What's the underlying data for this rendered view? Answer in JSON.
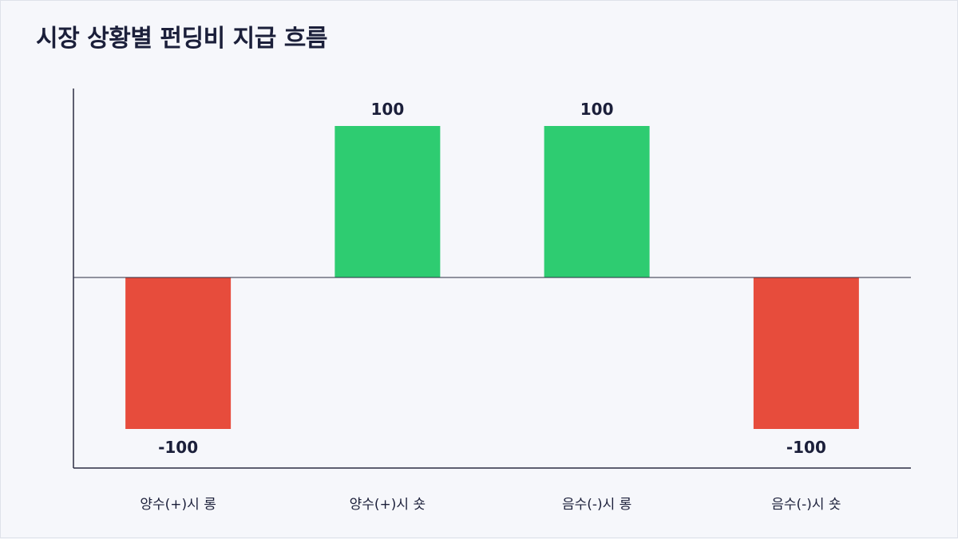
{
  "title": "시장 상황별 펀딩비 지급 흐름",
  "chart_data": {
    "type": "bar",
    "categories": [
      "양수(+)시 롱",
      "양수(+)시 숏",
      "음수(-)시 롱",
      "음수(-)시 숏"
    ],
    "values": [
      -100,
      100,
      100,
      -100
    ],
    "value_labels": [
      "-100",
      "100",
      "100",
      "-100"
    ],
    "title": "시장 상황별 펀딩비 지급 흐름",
    "xlabel": "",
    "ylabel": "",
    "ylim": [
      -125,
      125
    ],
    "grid": false,
    "colors": {
      "positive": "#2ecc71",
      "negative": "#e74c3c",
      "axis": "#2b2d42"
    }
  }
}
